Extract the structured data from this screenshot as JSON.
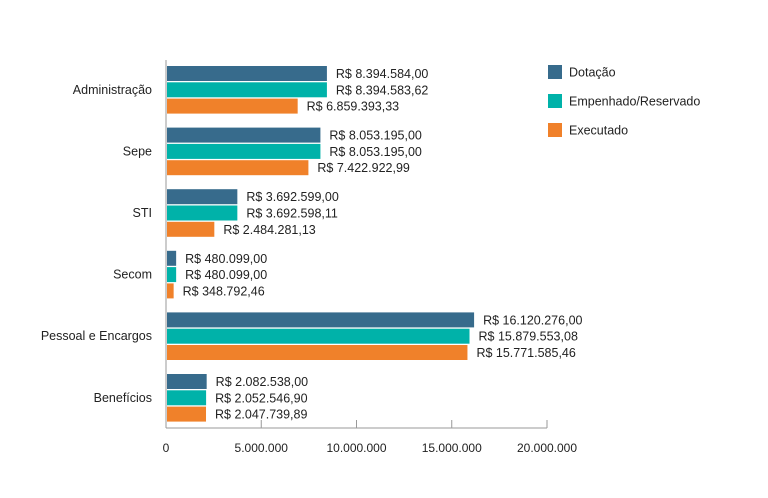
{
  "chart_data": {
    "type": "bar",
    "orientation": "horizontal",
    "categories": [
      "Administração",
      "Sepe",
      "STI",
      "Secom",
      "Pessoal e Encargos",
      "Benefícios"
    ],
    "series": [
      {
        "name": "Dotação",
        "color": "#376b8c",
        "values": [
          8394584.0,
          8053195.0,
          3692599.0,
          480099.0,
          16120276.0,
          2082538.0
        ],
        "labels": [
          "R$ 8.394.584,00",
          "R$ 8.053.195,00",
          "R$ 3.692.599,00",
          "R$ 480.099,00",
          "R$ 16.120.276,00",
          "R$ 2.082.538,00"
        ]
      },
      {
        "name": "Empenhado/Reservado",
        "color": "#00b2a9",
        "values": [
          8394583.62,
          8053195.0,
          3692598.11,
          480099.0,
          15879553.08,
          2052546.9
        ],
        "labels": [
          "R$ 8.394.583,62",
          "R$ 8.053.195,00",
          "R$ 3.692.598,11",
          "R$ 480.099,00",
          "R$ 15.879.553,08",
          "R$ 2.052.546,90"
        ]
      },
      {
        "name": "Executado",
        "color": "#f0812a",
        "values": [
          6859393.33,
          7422922.99,
          2484281.13,
          348792.46,
          15771585.46,
          2047739.89
        ],
        "labels": [
          "R$ 6.859.393,33",
          "R$ 7.422.922,99",
          "R$ 2.484.281,13",
          "R$ 348.792,46",
          "R$ 15.771.585,46",
          "R$ 2.047.739,89"
        ]
      }
    ],
    "xlim": [
      0,
      20000000
    ],
    "xticks": [
      0,
      5000000,
      10000000,
      15000000,
      20000000
    ],
    "xtick_labels": [
      "0",
      "5.000.000",
      "10.000.000",
      "15.000.000",
      "20.000.000"
    ],
    "grid": false,
    "legend_position": "top-right"
  }
}
